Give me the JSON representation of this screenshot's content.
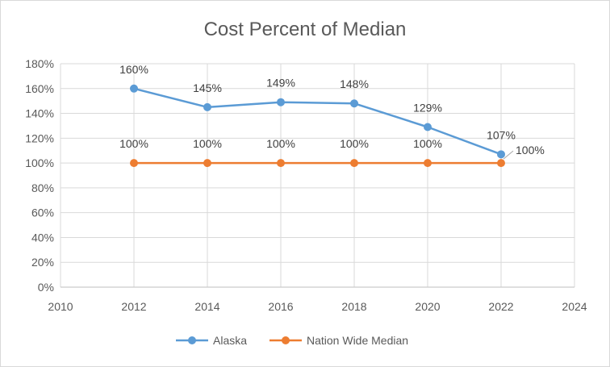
{
  "chart_data": {
    "type": "scatter",
    "title": "Cost Percent of Median",
    "xlabel": "",
    "ylabel": "",
    "xlim": [
      2010,
      2024
    ],
    "ylim": [
      0,
      180
    ],
    "x_ticks": [
      2010,
      2012,
      2014,
      2016,
      2018,
      2020,
      2022,
      2024
    ],
    "y_ticks": [
      0,
      20,
      40,
      60,
      80,
      100,
      120,
      140,
      160,
      180
    ],
    "y_tick_labels": [
      "0%",
      "20%",
      "40%",
      "60%",
      "80%",
      "100%",
      "120%",
      "140%",
      "160%",
      "180%"
    ],
    "grid": "horizontal",
    "legend_position": "bottom",
    "x": [
      2012,
      2014,
      2016,
      2018,
      2020,
      2022
    ],
    "series": [
      {
        "name": "Alaska",
        "color": "#5b9bd5",
        "values": [
          160,
          145,
          149,
          148,
          129,
          107
        ],
        "labels": [
          "160%",
          "145%",
          "149%",
          "148%",
          "129%",
          "107%"
        ]
      },
      {
        "name": "Nation Wide Median",
        "color": "#ed7d31",
        "values": [
          100,
          100,
          100,
          100,
          100,
          100
        ],
        "labels": [
          "100%",
          "100%",
          "100%",
          "100%",
          "100%",
          "100%"
        ]
      }
    ]
  }
}
